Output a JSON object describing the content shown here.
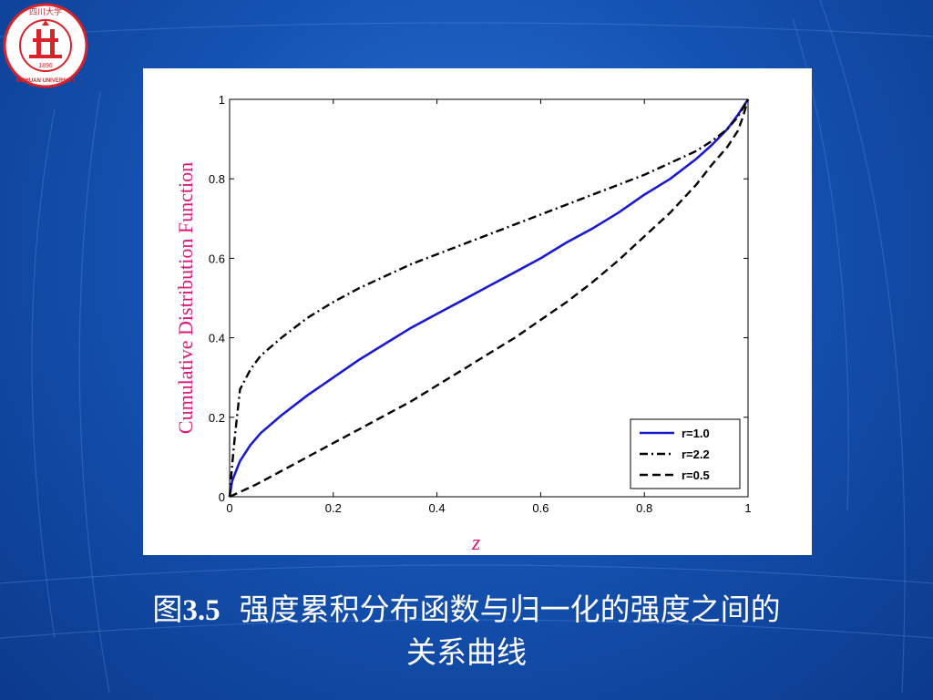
{
  "logo": {
    "icon": "sichuan-university-seal-icon",
    "color": "#d8232a",
    "year": "1896",
    "name_top": "四川大学",
    "name_bottom": "SICHUAN UNIVERSITY"
  },
  "chart_data": {
    "type": "line",
    "xlabel": "z",
    "ylabel": "Cumulative Distribution Function",
    "xlim": [
      0,
      1
    ],
    "ylim": [
      0,
      1
    ],
    "xticks": [
      "0",
      "0.2",
      "0.4",
      "0.6",
      "0.8",
      "1"
    ],
    "yticks": [
      "0",
      "0.2",
      "0.4",
      "0.6",
      "0.8",
      "1"
    ],
    "grid": false,
    "legend_position": "bottom-right",
    "series": [
      {
        "name": "r=1.0",
        "color": "#1a1ad0",
        "style": "solid",
        "x": [
          0,
          0.005,
          0.02,
          0.04,
          0.06,
          0.1,
          0.15,
          0.2,
          0.25,
          0.3,
          0.35,
          0.4,
          0.45,
          0.5,
          0.55,
          0.6,
          0.65,
          0.7,
          0.75,
          0.8,
          0.85,
          0.9,
          0.93,
          0.96,
          0.98,
          0.99,
          1.0
        ],
        "y": [
          0,
          0.04,
          0.09,
          0.13,
          0.16,
          0.205,
          0.255,
          0.3,
          0.345,
          0.385,
          0.425,
          0.46,
          0.495,
          0.53,
          0.565,
          0.6,
          0.64,
          0.675,
          0.715,
          0.76,
          0.8,
          0.85,
          0.885,
          0.925,
          0.96,
          0.98,
          1.0
        ]
      },
      {
        "name": "r=2.2",
        "color": "#000000",
        "style": "dashdot",
        "x": [
          0,
          0.005,
          0.01,
          0.02,
          0.04,
          0.06,
          0.1,
          0.15,
          0.2,
          0.25,
          0.3,
          0.35,
          0.4,
          0.45,
          0.5,
          0.55,
          0.6,
          0.65,
          0.7,
          0.75,
          0.8,
          0.85,
          0.9,
          0.93,
          0.96,
          0.98,
          1.0
        ],
        "y": [
          0,
          0.08,
          0.15,
          0.27,
          0.32,
          0.355,
          0.4,
          0.45,
          0.49,
          0.525,
          0.555,
          0.585,
          0.61,
          0.635,
          0.66,
          0.685,
          0.71,
          0.735,
          0.76,
          0.785,
          0.81,
          0.84,
          0.87,
          0.895,
          0.925,
          0.955,
          1.0
        ]
      },
      {
        "name": "r=0.5",
        "color": "#000000",
        "style": "dashed",
        "x": [
          0,
          0.05,
          0.1,
          0.15,
          0.2,
          0.25,
          0.3,
          0.35,
          0.4,
          0.45,
          0.5,
          0.55,
          0.6,
          0.65,
          0.7,
          0.75,
          0.8,
          0.85,
          0.9,
          0.93,
          0.96,
          0.98,
          0.99,
          1.0
        ],
        "y": [
          0,
          0.03,
          0.065,
          0.1,
          0.135,
          0.17,
          0.205,
          0.24,
          0.28,
          0.32,
          0.36,
          0.4,
          0.445,
          0.49,
          0.54,
          0.595,
          0.655,
          0.715,
          0.785,
          0.835,
          0.88,
          0.92,
          0.955,
          1.0
        ]
      }
    ]
  },
  "caption": {
    "prefix": "图",
    "number": "3.5",
    "line1": "强度累积分布函数与归一化的强度之间的",
    "line2": "关系曲线"
  }
}
